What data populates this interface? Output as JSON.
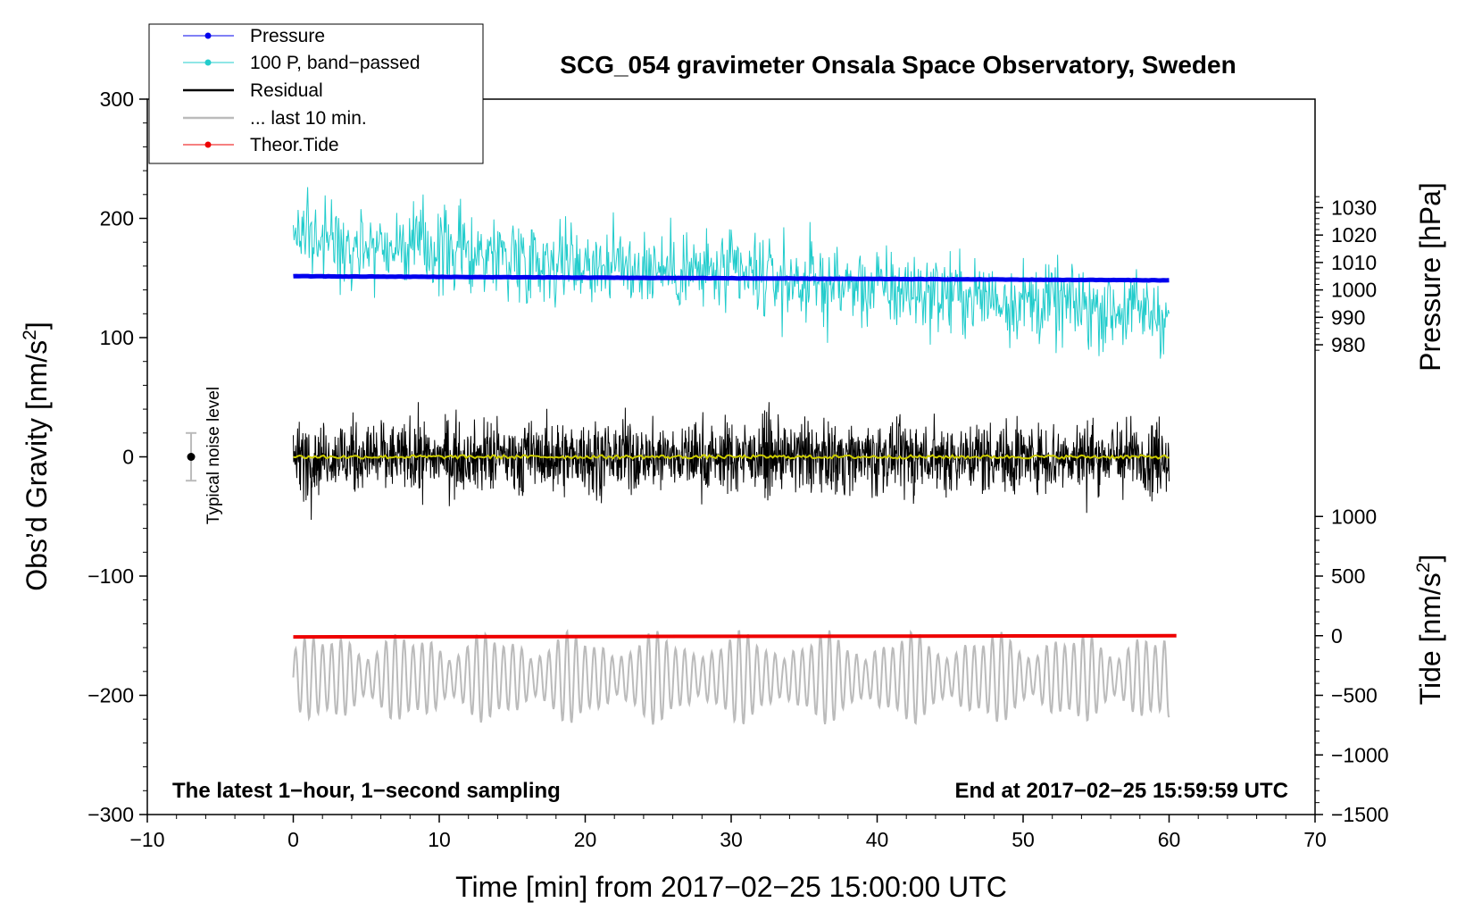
{
  "chart_data": {
    "type": "line",
    "title": "SCG_054 gravimeter Onsala Space Observatory, Sweden",
    "xlabel": "Time [min] from 2017−02−25 15:00:00 UTC",
    "ylabel_left": "Obs’d Gravity [nm/s",
    "ylabel_left_sup": "2",
    "ylabel_left_end": "]",
    "ylabel_right_pressure": "Pressure [hPa]",
    "ylabel_right_tide": "Tide [nm/s",
    "ylabel_right_tide_sup": "2",
    "ylabel_right_tide_end": "]",
    "xlim": [
      -10,
      70
    ],
    "ylim_left": [
      -300,
      300
    ],
    "pressure_axis": {
      "ticks": [
        980,
        990,
        1000,
        1010,
        1020,
        1030
      ],
      "ref_value": 1000,
      "ref_gravity": 140,
      "scale": 2.3
    },
    "tide_axis": {
      "ticks": [
        -1500,
        -1000,
        -500,
        0,
        500,
        1000
      ],
      "ref_gravity": -150,
      "scale": 0.1
    },
    "x_ticks": [
      -10,
      0,
      10,
      20,
      30,
      40,
      50,
      60,
      70
    ],
    "x_tick_labels": [
      "−10",
      "0",
      "10",
      "20",
      "30",
      "40",
      "50",
      "60",
      "70"
    ],
    "y_ticks_left": [
      -300,
      -200,
      -100,
      0,
      100,
      200,
      300
    ],
    "y_tick_labels_left": [
      "−300",
      "−200",
      "−100",
      "0",
      "100",
      "200",
      "300"
    ],
    "pressure_tick_labels": [
      "980",
      "990",
      "1000",
      "1010",
      "1020",
      "1030"
    ],
    "tide_tick_labels": [
      "−1500",
      "−1000",
      "−500",
      "0",
      "500",
      "1000"
    ],
    "series": [
      {
        "name": "Pressure",
        "color": "#0000ee",
        "x_range": [
          0,
          60
        ],
        "pressure_start_hPa": 1005.0,
        "pressure_end_hPa": 1003.5
      },
      {
        "name": "100 P, band−passed",
        "color": "#22cccc",
        "x_range": [
          0,
          60
        ],
        "center_gravity_start": 185,
        "center_gravity_end": 120,
        "amplitude": 40
      },
      {
        "name": "Residual",
        "color": "#000000",
        "x_range": [
          0,
          60
        ],
        "center_gravity": 0,
        "amplitude": 45
      },
      {
        "name": "... last 10 min.",
        "color": "#bbbbbb",
        "x_range": [
          0,
          60
        ],
        "center_gravity": -185,
        "amplitude": 40
      },
      {
        "name": "Theor.Tide",
        "color": "#ee0000",
        "x_range": [
          0,
          60.5
        ],
        "tide_start": -10,
        "tide_end": 0
      }
    ],
    "smoothed_residual": {
      "color": "#cccc00",
      "center_gravity": 0
    },
    "noise_level": {
      "x": -7,
      "center": 0,
      "half_range": 20,
      "label": "Typical noise level"
    },
    "annotations": {
      "left_note": "The latest 1−hour, 1−second sampling",
      "right_note": "End at 2017−02−25 15:59:59 UTC"
    },
    "legend_position": "top-left"
  },
  "colors": {
    "pressure": "#0000ee",
    "bandpassed": "#22cccc",
    "residual": "#000000",
    "last10": "#bbbbbb",
    "tide": "#ee0000",
    "smooth": "#cccc00"
  }
}
